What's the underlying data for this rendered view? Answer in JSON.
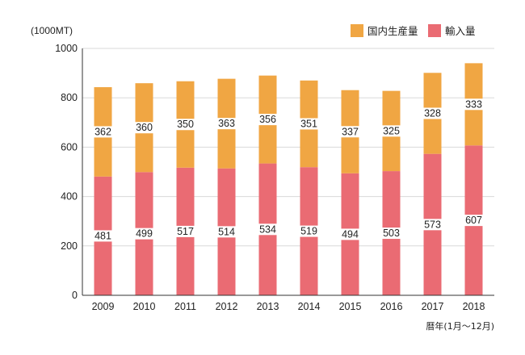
{
  "chart_data": {
    "type": "bar",
    "stacked": true,
    "unit_label": "(1000MT)",
    "xlabel": "暦年(1月〜12月)",
    "ylabel": "",
    "ylim": [
      0,
      1000
    ],
    "yticks": [
      0,
      200,
      400,
      600,
      800,
      1000
    ],
    "grid": true,
    "legend_position": "top-right",
    "categories": [
      "2009",
      "2010",
      "2011",
      "2012",
      "2013",
      "2014",
      "2015",
      "2016",
      "2017",
      "2018"
    ],
    "series": [
      {
        "name": "輸入量",
        "color": "#ea6b73",
        "values": [
          481,
          499,
          517,
          514,
          534,
          519,
          494,
          503,
          573,
          607
        ]
      },
      {
        "name": "国内生産量",
        "color": "#f0a643",
        "values": [
          362,
          360,
          350,
          363,
          356,
          351,
          337,
          325,
          328,
          333
        ]
      }
    ]
  }
}
